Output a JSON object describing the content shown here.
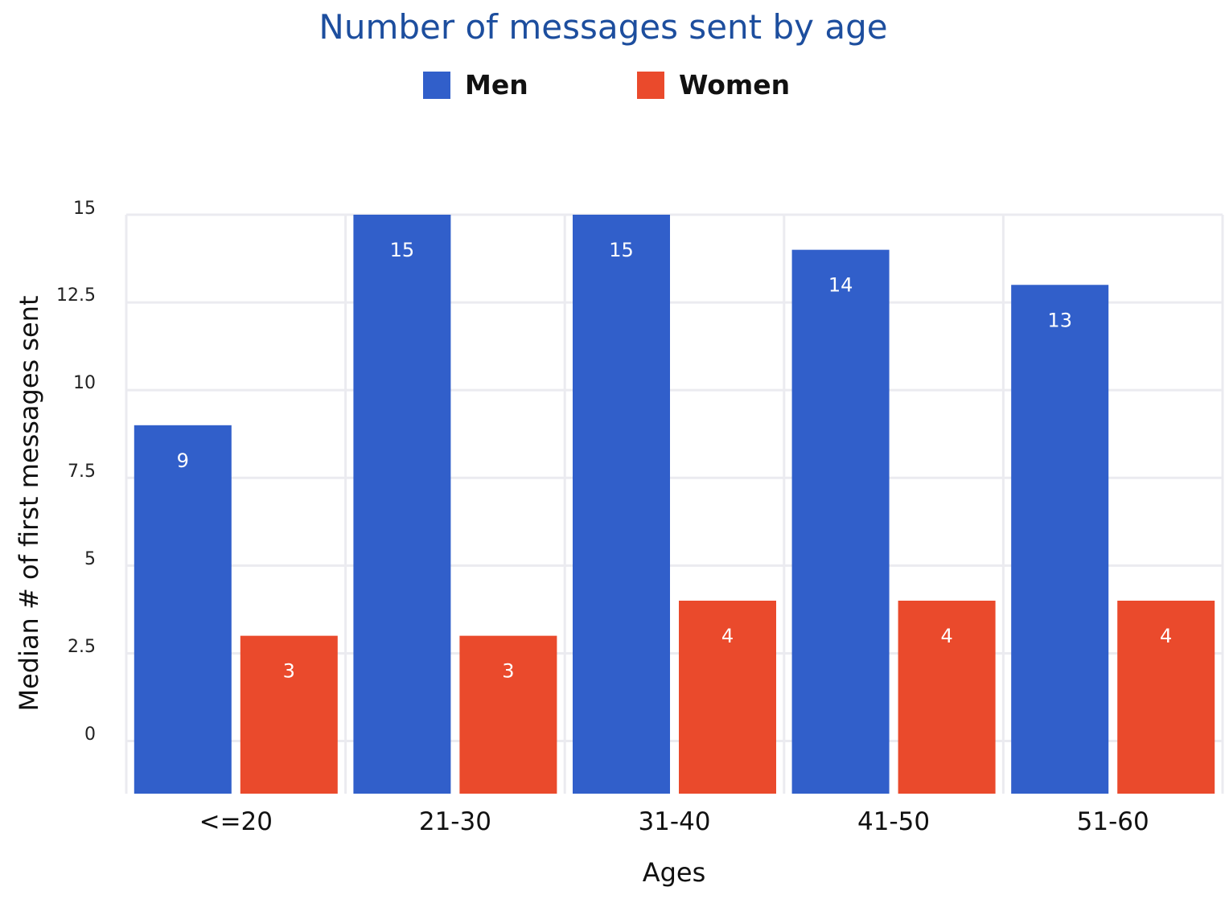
{
  "chart_data": {
    "type": "bar",
    "title": "Number of messages sent by age",
    "xlabel": "Ages",
    "ylabel": "Median # of first messages sent",
    "categories": [
      "<=20",
      "21-30",
      "31-40",
      "41-50",
      "51-60"
    ],
    "series": [
      {
        "name": "Men",
        "color": "#315fca",
        "values": [
          9,
          15,
          15,
          14,
          13
        ]
      },
      {
        "name": "Women",
        "color": "#ea4a2c",
        "values": [
          3,
          3,
          4,
          4,
          4
        ]
      }
    ],
    "yticks": [
      "0",
      "2.5",
      "5",
      "7.5",
      "10",
      "12.5",
      "15"
    ],
    "ylim": [
      -1.5,
      15
    ],
    "grid": true,
    "legend": "top-center"
  }
}
